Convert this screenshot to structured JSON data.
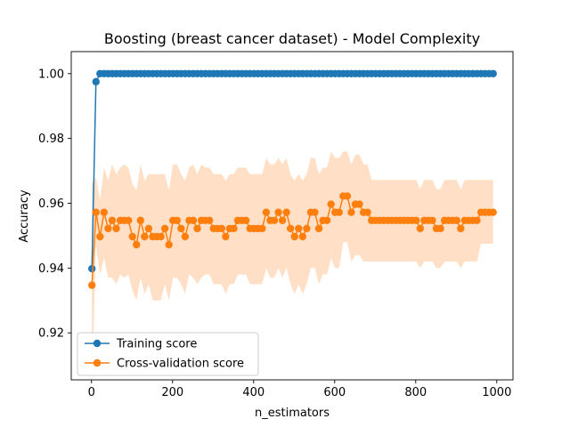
{
  "chart_data": {
    "type": "line",
    "title": "Boosting (breast cancer dataset) - Model Complexity",
    "xlabel": "n_estimators",
    "ylabel": "Accuracy",
    "xlim": [
      -50,
      1040
    ],
    "ylim": [
      0.9055,
      1.0068
    ],
    "xticks": [
      0,
      200,
      400,
      600,
      800,
      1000
    ],
    "yticks": [
      0.92,
      0.94,
      0.96,
      0.98,
      1.0
    ],
    "ytick_labels": [
      "0.92",
      "0.94",
      "0.96",
      "0.98",
      "1.00"
    ],
    "grid": false,
    "legend_position": "lower-left",
    "x": [
      1,
      11,
      21,
      31,
      41,
      51,
      61,
      71,
      81,
      91,
      101,
      111,
      121,
      131,
      141,
      151,
      161,
      171,
      181,
      191,
      201,
      211,
      221,
      231,
      241,
      251,
      261,
      271,
      281,
      291,
      301,
      311,
      321,
      331,
      341,
      351,
      361,
      371,
      381,
      391,
      401,
      411,
      421,
      431,
      441,
      451,
      461,
      471,
      481,
      491,
      501,
      511,
      521,
      531,
      541,
      551,
      561,
      571,
      581,
      591,
      601,
      611,
      621,
      631,
      641,
      651,
      661,
      671,
      681,
      691,
      701,
      711,
      721,
      731,
      741,
      751,
      761,
      771,
      781,
      791,
      801,
      811,
      821,
      831,
      841,
      851,
      861,
      871,
      881,
      891,
      901,
      911,
      921,
      931,
      941,
      951,
      961,
      971,
      981,
      991
    ],
    "series": [
      {
        "name": "Training score",
        "color": "#1f77b4",
        "values": [
          0.9398,
          0.9975,
          1.0,
          1.0,
          1.0,
          1.0,
          1.0,
          1.0,
          1.0,
          1.0,
          1.0,
          1.0,
          1.0,
          1.0,
          1.0,
          1.0,
          1.0,
          1.0,
          1.0,
          1.0,
          1.0,
          1.0,
          1.0,
          1.0,
          1.0,
          1.0,
          1.0,
          1.0,
          1.0,
          1.0,
          1.0,
          1.0,
          1.0,
          1.0,
          1.0,
          1.0,
          1.0,
          1.0,
          1.0,
          1.0,
          1.0,
          1.0,
          1.0,
          1.0,
          1.0,
          1.0,
          1.0,
          1.0,
          1.0,
          1.0,
          1.0,
          1.0,
          1.0,
          1.0,
          1.0,
          1.0,
          1.0,
          1.0,
          1.0,
          1.0,
          1.0,
          1.0,
          1.0,
          1.0,
          1.0,
          1.0,
          1.0,
          1.0,
          1.0,
          1.0,
          1.0,
          1.0,
          1.0,
          1.0,
          1.0,
          1.0,
          1.0,
          1.0,
          1.0,
          1.0,
          1.0,
          1.0,
          1.0,
          1.0,
          1.0,
          1.0,
          1.0,
          1.0,
          1.0,
          1.0,
          1.0,
          1.0,
          1.0,
          1.0,
          1.0,
          1.0,
          1.0,
          1.0,
          1.0,
          1.0
        ]
      },
      {
        "name": "Cross-validation score",
        "color": "#ff7f0e",
        "band_color": "#ffe0c6",
        "values": [
          0.9347,
          0.9572,
          0.9497,
          0.9572,
          0.9522,
          0.9547,
          0.9522,
          0.9547,
          0.9547,
          0.9547,
          0.9497,
          0.9472,
          0.9547,
          0.9497,
          0.9522,
          0.9497,
          0.9497,
          0.9497,
          0.9522,
          0.9472,
          0.9547,
          0.9547,
          0.9522,
          0.9497,
          0.9547,
          0.9547,
          0.9522,
          0.9547,
          0.9547,
          0.9547,
          0.9522,
          0.9522,
          0.9522,
          0.9497,
          0.9522,
          0.9522,
          0.9547,
          0.9547,
          0.9547,
          0.9522,
          0.9522,
          0.9522,
          0.9522,
          0.9572,
          0.9547,
          0.9547,
          0.9572,
          0.9547,
          0.9572,
          0.9522,
          0.9497,
          0.9522,
          0.9497,
          0.9522,
          0.9572,
          0.9572,
          0.9522,
          0.9547,
          0.9547,
          0.9597,
          0.9572,
          0.9572,
          0.9622,
          0.9622,
          0.9572,
          0.9597,
          0.9597,
          0.9572,
          0.9572,
          0.9547,
          0.9547,
          0.9547,
          0.9547,
          0.9547,
          0.9547,
          0.9547,
          0.9547,
          0.9547,
          0.9547,
          0.9547,
          0.9547,
          0.9522,
          0.9547,
          0.9547,
          0.9547,
          0.9522,
          0.9522,
          0.9547,
          0.9547,
          0.9547,
          0.9547,
          0.9522,
          0.9547,
          0.9547,
          0.9547,
          0.9547,
          0.9572,
          0.9572,
          0.9572,
          0.9572
        ],
        "lower": [
          0.903,
          0.947,
          0.938,
          0.943,
          0.937,
          0.937,
          0.935,
          0.938,
          0.937,
          0.938,
          0.933,
          0.93,
          0.937,
          0.932,
          0.935,
          0.93,
          0.93,
          0.93,
          0.935,
          0.93,
          0.937,
          0.937,
          0.935,
          0.932,
          0.938,
          0.937,
          0.935,
          0.937,
          0.938,
          0.938,
          0.935,
          0.935,
          0.935,
          0.932,
          0.935,
          0.935,
          0.938,
          0.938,
          0.938,
          0.935,
          0.935,
          0.935,
          0.935,
          0.94,
          0.937,
          0.937,
          0.94,
          0.937,
          0.94,
          0.935,
          0.932,
          0.935,
          0.932,
          0.935,
          0.94,
          0.94,
          0.935,
          0.938,
          0.938,
          0.943,
          0.94,
          0.94,
          0.948,
          0.948,
          0.942,
          0.944,
          0.944,
          0.942,
          0.942,
          0.942,
          0.942,
          0.942,
          0.942,
          0.942,
          0.942,
          0.942,
          0.942,
          0.942,
          0.942,
          0.942,
          0.942,
          0.94,
          0.942,
          0.942,
          0.942,
          0.94,
          0.94,
          0.942,
          0.942,
          0.942,
          0.942,
          0.94,
          0.942,
          0.942,
          0.942,
          0.942,
          0.9475,
          0.9475,
          0.9475,
          0.9475
        ],
        "upper": [
          0.966,
          0.968,
          0.961,
          0.971,
          0.967,
          0.972,
          0.969,
          0.971,
          0.972,
          0.971,
          0.966,
          0.964,
          0.972,
          0.967,
          0.969,
          0.969,
          0.969,
          0.969,
          0.969,
          0.964,
          0.972,
          0.972,
          0.969,
          0.967,
          0.971,
          0.972,
          0.969,
          0.972,
          0.971,
          0.971,
          0.969,
          0.969,
          0.969,
          0.967,
          0.969,
          0.969,
          0.971,
          0.971,
          0.971,
          0.969,
          0.969,
          0.969,
          0.969,
          0.974,
          0.972,
          0.972,
          0.974,
          0.972,
          0.974,
          0.969,
          0.967,
          0.969,
          0.967,
          0.969,
          0.974,
          0.974,
          0.969,
          0.971,
          0.971,
          0.976,
          0.974,
          0.974,
          0.976,
          0.976,
          0.972,
          0.975,
          0.975,
          0.972,
          0.972,
          0.9672,
          0.9672,
          0.9672,
          0.9672,
          0.9672,
          0.9672,
          0.9672,
          0.9672,
          0.9672,
          0.9672,
          0.9672,
          0.9672,
          0.9644,
          0.9672,
          0.9672,
          0.9672,
          0.9644,
          0.9644,
          0.9672,
          0.9672,
          0.9672,
          0.9672,
          0.9644,
          0.9672,
          0.9672,
          0.9672,
          0.9672,
          0.9672,
          0.9672,
          0.9672,
          0.9672
        ]
      }
    ]
  }
}
